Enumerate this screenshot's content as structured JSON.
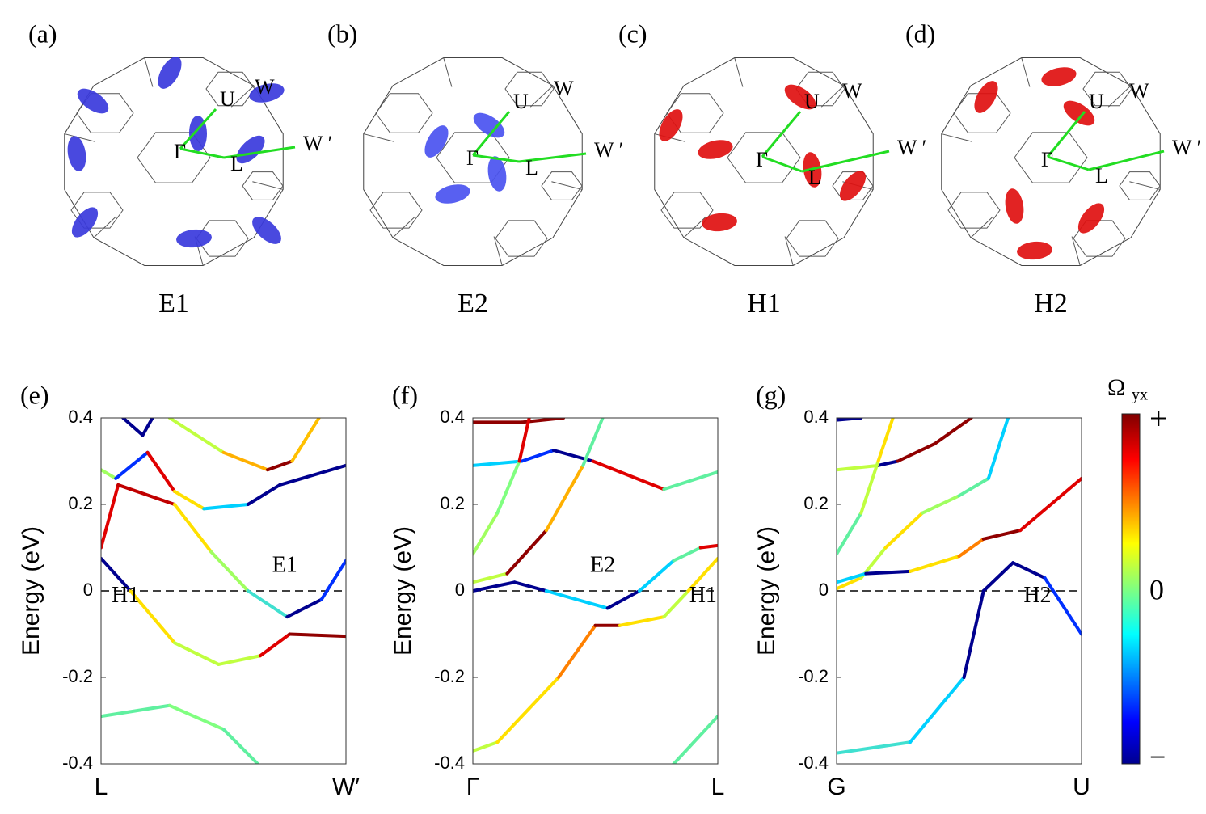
{
  "surfaces": [
    {
      "label": "(a)",
      "caption": "E1",
      "color": "#3a3adc",
      "points": [
        "U",
        "W",
        "W ′",
        "Γ",
        "L"
      ]
    },
    {
      "label": "(b)",
      "caption": "E2",
      "color": "#4a52f0",
      "points": [
        "U",
        "W",
        "W ′",
        "Γ",
        "L"
      ]
    },
    {
      "label": "(c)",
      "caption": "H1",
      "color": "#e01010",
      "points": [
        "U",
        "W",
        "W ′",
        "Γ",
        "L"
      ]
    },
    {
      "label": "(d)",
      "caption": "H2",
      "color": "#e01010",
      "points": [
        "U",
        "W",
        "W ′",
        "Γ",
        "L"
      ]
    }
  ],
  "chart_data": [
    {
      "type": "line",
      "label": "(e)",
      "ylabel": "Energy (eV)",
      "ylim": [
        -0.4,
        0.4
      ],
      "yticks": [
        -0.4,
        -0.2,
        0,
        0.2,
        0.4
      ],
      "hline": 0,
      "xlim": [
        0,
        1
      ],
      "xticks": [
        {
          "value": 0,
          "label": "L"
        },
        {
          "value": 1,
          "label": "W′"
        }
      ],
      "annotations": [
        {
          "text": "E1",
          "x": 0.75,
          "y": 0.03
        },
        {
          "text": "H1",
          "x": 0.1,
          "y": -0.04
        }
      ],
      "series": [
        {
          "x": [
            0.09,
            0.17,
            0.21
          ],
          "values": [
            0.4,
            0.36,
            0.4
          ],
          "colors": [
            "#00008f",
            "#00008f",
            "#00008f"
          ]
        },
        {
          "x": [
            0,
            0.07,
            0.3,
            0.45,
            0.6,
            0.76,
            0.9,
            1
          ],
          "values": [
            0.1,
            0.245,
            0.2,
            0.09,
            0,
            -0.06,
            -0.02,
            0.07
          ],
          "colors": [
            "#e00000",
            "#c00000",
            "#ffe000",
            "#a0ff60",
            "#40e0d0",
            "#00008f",
            "#0030ff",
            "#00d0ff"
          ]
        },
        {
          "x": [
            0,
            0.06,
            0.19,
            0.3,
            0.42,
            0.6,
            0.73,
            1
          ],
          "values": [
            0.28,
            0.26,
            0.32,
            0.23,
            0.19,
            0.2,
            0.245,
            0.29
          ],
          "colors": [
            "#a0ff60",
            "#0030ff",
            "#e00000",
            "#ffe000",
            "#00d0ff",
            "#00008f",
            "#00008f",
            "#60f0a0"
          ]
        },
        {
          "x": [
            0.28,
            0.5,
            0.68,
            0.78,
            0.89
          ],
          "values": [
            0.4,
            0.32,
            0.28,
            0.3,
            0.4
          ],
          "colors": [
            "#c0ff40",
            "#ffb000",
            "#900000",
            "#ffc000",
            "#60f0a0"
          ]
        },
        {
          "x": [
            0,
            0.12,
            0.3,
            0.48,
            0.65,
            0.77,
            1
          ],
          "values": [
            0.075,
            0,
            -0.12,
            -0.17,
            -0.15,
            -0.1,
            -0.105
          ],
          "colors": [
            "#00008f",
            "#ffe000",
            "#c0ff40",
            "#c0ff40",
            "#e00000",
            "#900000",
            "#e00000"
          ]
        },
        {
          "x": [
            0,
            0.28,
            0.5,
            0.64
          ],
          "values": [
            -0.29,
            -0.265,
            -0.32,
            -0.4
          ],
          "colors": [
            "#60f0a0",
            "#80ff80",
            "#60f0a0",
            "#60f0a0"
          ]
        }
      ]
    },
    {
      "type": "line",
      "label": "(f)",
      "ylabel": "Energy (eV)",
      "ylim": [
        -0.4,
        0.4
      ],
      "yticks": [
        -0.4,
        -0.2,
        0,
        0.2,
        0.4
      ],
      "hline": 0,
      "xlim": [
        0,
        1
      ],
      "xticks": [
        {
          "value": 0,
          "label": "Γ"
        },
        {
          "value": 1,
          "label": "L"
        }
      ],
      "annotations": [
        {
          "text": "E2",
          "x": 0.53,
          "y": 0.03
        },
        {
          "text": "H1",
          "x": 0.94,
          "y": -0.04
        }
      ],
      "series": [
        {
          "x": [
            0,
            0.2,
            0.33,
            0.49,
            0.78,
            1
          ],
          "values": [
            0.29,
            0.3,
            0.325,
            0.3,
            0.235,
            0.275
          ],
          "colors": [
            "#00d0ff",
            "#0030ff",
            "#00008f",
            "#e00000",
            "#60f0a0",
            "#60f0a0"
          ]
        },
        {
          "x": [
            0,
            0.2,
            0.37
          ],
          "values": [
            0.39,
            0.39,
            0.4
          ],
          "colors": [
            "#900000",
            "#900000",
            "#900000"
          ]
        },
        {
          "x": [
            0,
            0.1,
            0.19,
            0.23
          ],
          "values": [
            0.085,
            0.18,
            0.3,
            0.4
          ],
          "colors": [
            "#a0ff60",
            "#80ff80",
            "#e00000",
            "#0030ff"
          ]
        },
        {
          "x": [
            0,
            0.14,
            0.3,
            0.45,
            0.53
          ],
          "values": [
            0.02,
            0.04,
            0.14,
            0.29,
            0.4
          ],
          "colors": [
            "#c0ff40",
            "#900000",
            "#ffb000",
            "#60f0a0",
            "#00d0ff"
          ]
        },
        {
          "x": [
            0,
            0.17,
            0.3,
            0.55,
            0.68,
            0.82,
            0.93,
            1
          ],
          "values": [
            0,
            0.02,
            0,
            -0.04,
            0,
            0.07,
            0.1,
            0.105
          ],
          "colors": [
            "#00008f",
            "#00008f",
            "#00d0ff",
            "#00008f",
            "#00d0ff",
            "#60f0a0",
            "#e00000",
            "#900000"
          ]
        },
        {
          "x": [
            0,
            0.1,
            0.35,
            0.5,
            0.6,
            0.78,
            0.88,
            1
          ],
          "values": [
            -0.37,
            -0.35,
            -0.2,
            -0.08,
            -0.08,
            -0.06,
            0,
            0.075
          ],
          "colors": [
            "#c0ff40",
            "#ffe000",
            "#ff8000",
            "#900000",
            "#ffe000",
            "#c0ff40",
            "#ffe000",
            "#00008f"
          ]
        },
        {
          "x": [
            0.82,
            1
          ],
          "values": [
            -0.4,
            -0.29
          ],
          "colors": [
            "#60f0a0",
            "#60f0a0"
          ]
        }
      ]
    },
    {
      "type": "line",
      "label": "(g)",
      "ylabel": "Energy (eV)",
      "ylim": [
        -0.4,
        0.4
      ],
      "yticks": [
        -0.4,
        -0.2,
        0,
        0.2,
        0.4
      ],
      "hline": 0,
      "xlim": [
        0,
        1
      ],
      "xticks": [
        {
          "value": 0,
          "label": "G"
        },
        {
          "value": 1,
          "label": "U"
        }
      ],
      "annotations": [
        {
          "text": "H2",
          "x": 0.82,
          "y": -0.04
        }
      ],
      "series": [
        {
          "x": [
            0,
            0.1
          ],
          "values": [
            0.395,
            0.4
          ],
          "colors": [
            "#00008f",
            "#c0ff40"
          ]
        },
        {
          "x": [
            0,
            0.17,
            0.25,
            0.4,
            0.55
          ],
          "values": [
            0.28,
            0.29,
            0.3,
            0.34,
            0.4
          ],
          "colors": [
            "#c0ff40",
            "#00008f",
            "#900000",
            "#900000",
            "#900000"
          ]
        },
        {
          "x": [
            0,
            0.1,
            0.17,
            0.23
          ],
          "values": [
            0.085,
            0.18,
            0.3,
            0.4
          ],
          "colors": [
            "#60f0a0",
            "#c0ff40",
            "#ffe000",
            "#e00000"
          ]
        },
        {
          "x": [
            0,
            0.1,
            0.2,
            0.35,
            0.5,
            0.62,
            0.7
          ],
          "values": [
            0.005,
            0.03,
            0.1,
            0.18,
            0.22,
            0.26,
            0.4
          ],
          "colors": [
            "#ffe000",
            "#c0ff40",
            "#ffe000",
            "#a0ff60",
            "#60f0a0",
            "#00d0ff",
            "#00d0ff"
          ]
        },
        {
          "x": [
            0,
            0.12,
            0.3,
            0.5,
            0.6,
            0.75,
            1
          ],
          "values": [
            0.02,
            0.04,
            0.045,
            0.08,
            0.12,
            0.14,
            0.26
          ],
          "colors": [
            "#00d0ff",
            "#00008f",
            "#ffe000",
            "#ff8000",
            "#900000",
            "#e00000",
            "#60f0a0"
          ]
        },
        {
          "x": [
            0,
            0.3,
            0.52,
            0.6,
            0.72,
            0.85,
            1
          ],
          "values": [
            -0.375,
            -0.35,
            -0.2,
            0,
            0.065,
            0.03,
            -0.1
          ],
          "colors": [
            "#40e0d0",
            "#00d0ff",
            "#00008f",
            "#00008f",
            "#00008f",
            "#0030ff",
            "#80ff80"
          ]
        }
      ]
    }
  ],
  "colorbar": {
    "title": "Ω",
    "title_sub": "yx",
    "top": "+",
    "middle": "0",
    "bottom": "−"
  }
}
